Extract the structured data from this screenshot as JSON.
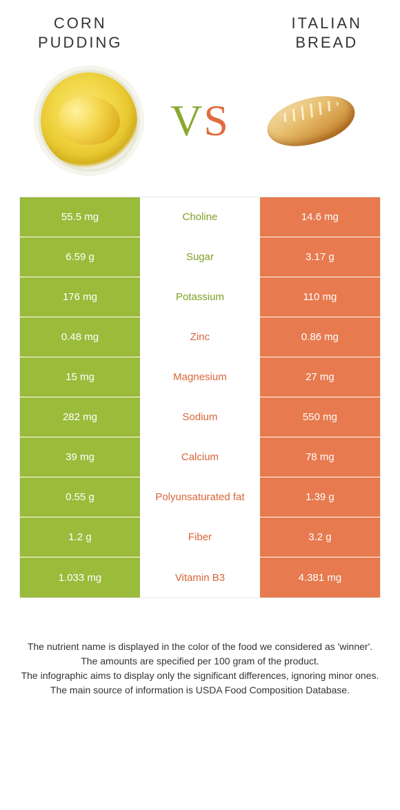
{
  "header": {
    "left_title_line1": "CORN",
    "left_title_line2": "PUDDING",
    "right_title_line1": "ITALIAN",
    "right_title_line2": "BREAD",
    "vs_v": "V",
    "vs_s": "S"
  },
  "colors": {
    "left_bg": "#9bbb3b",
    "right_bg": "#e77a4f",
    "mid_green": "#7fa023",
    "mid_orange": "#d8643a"
  },
  "rows": [
    {
      "left": "55.5 mg",
      "label": "Choline",
      "right": "14.6 mg",
      "winner": "left"
    },
    {
      "left": "6.59 g",
      "label": "Sugar",
      "right": "3.17 g",
      "winner": "left"
    },
    {
      "left": "176 mg",
      "label": "Potassium",
      "right": "110 mg",
      "winner": "left"
    },
    {
      "left": "0.48 mg",
      "label": "Zinc",
      "right": "0.86 mg",
      "winner": "right"
    },
    {
      "left": "15 mg",
      "label": "Magnesium",
      "right": "27 mg",
      "winner": "right"
    },
    {
      "left": "282 mg",
      "label": "Sodium",
      "right": "550 mg",
      "winner": "right"
    },
    {
      "left": "39 mg",
      "label": "Calcium",
      "right": "78 mg",
      "winner": "right"
    },
    {
      "left": "0.55 g",
      "label": "Polyunsaturated fat",
      "right": "1.39 g",
      "winner": "right"
    },
    {
      "left": "1.2 g",
      "label": "Fiber",
      "right": "3.2 g",
      "winner": "right"
    },
    {
      "left": "1.033 mg",
      "label": "Vitamin B3",
      "right": "4.381 mg",
      "winner": "right"
    }
  ],
  "footer": {
    "line1": "The nutrient name is displayed in the color of the food we considered as 'winner'.",
    "line2": "The amounts are specified per 100 gram of the product.",
    "line3": "The infographic aims to display only the significant differences, ignoring minor ones.",
    "line4": "The main source of information is USDA Food Composition Database."
  }
}
